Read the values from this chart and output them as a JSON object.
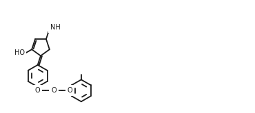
{
  "bg_color": "#ffffff",
  "lc": "#1a1a1a",
  "lw": 1.3,
  "fs": 7.0,
  "fw": 3.7,
  "fh": 1.65,
  "dpi": 100,
  "xlim": [
    0.0,
    3.7
  ],
  "ylim": [
    0.0,
    1.65
  ]
}
